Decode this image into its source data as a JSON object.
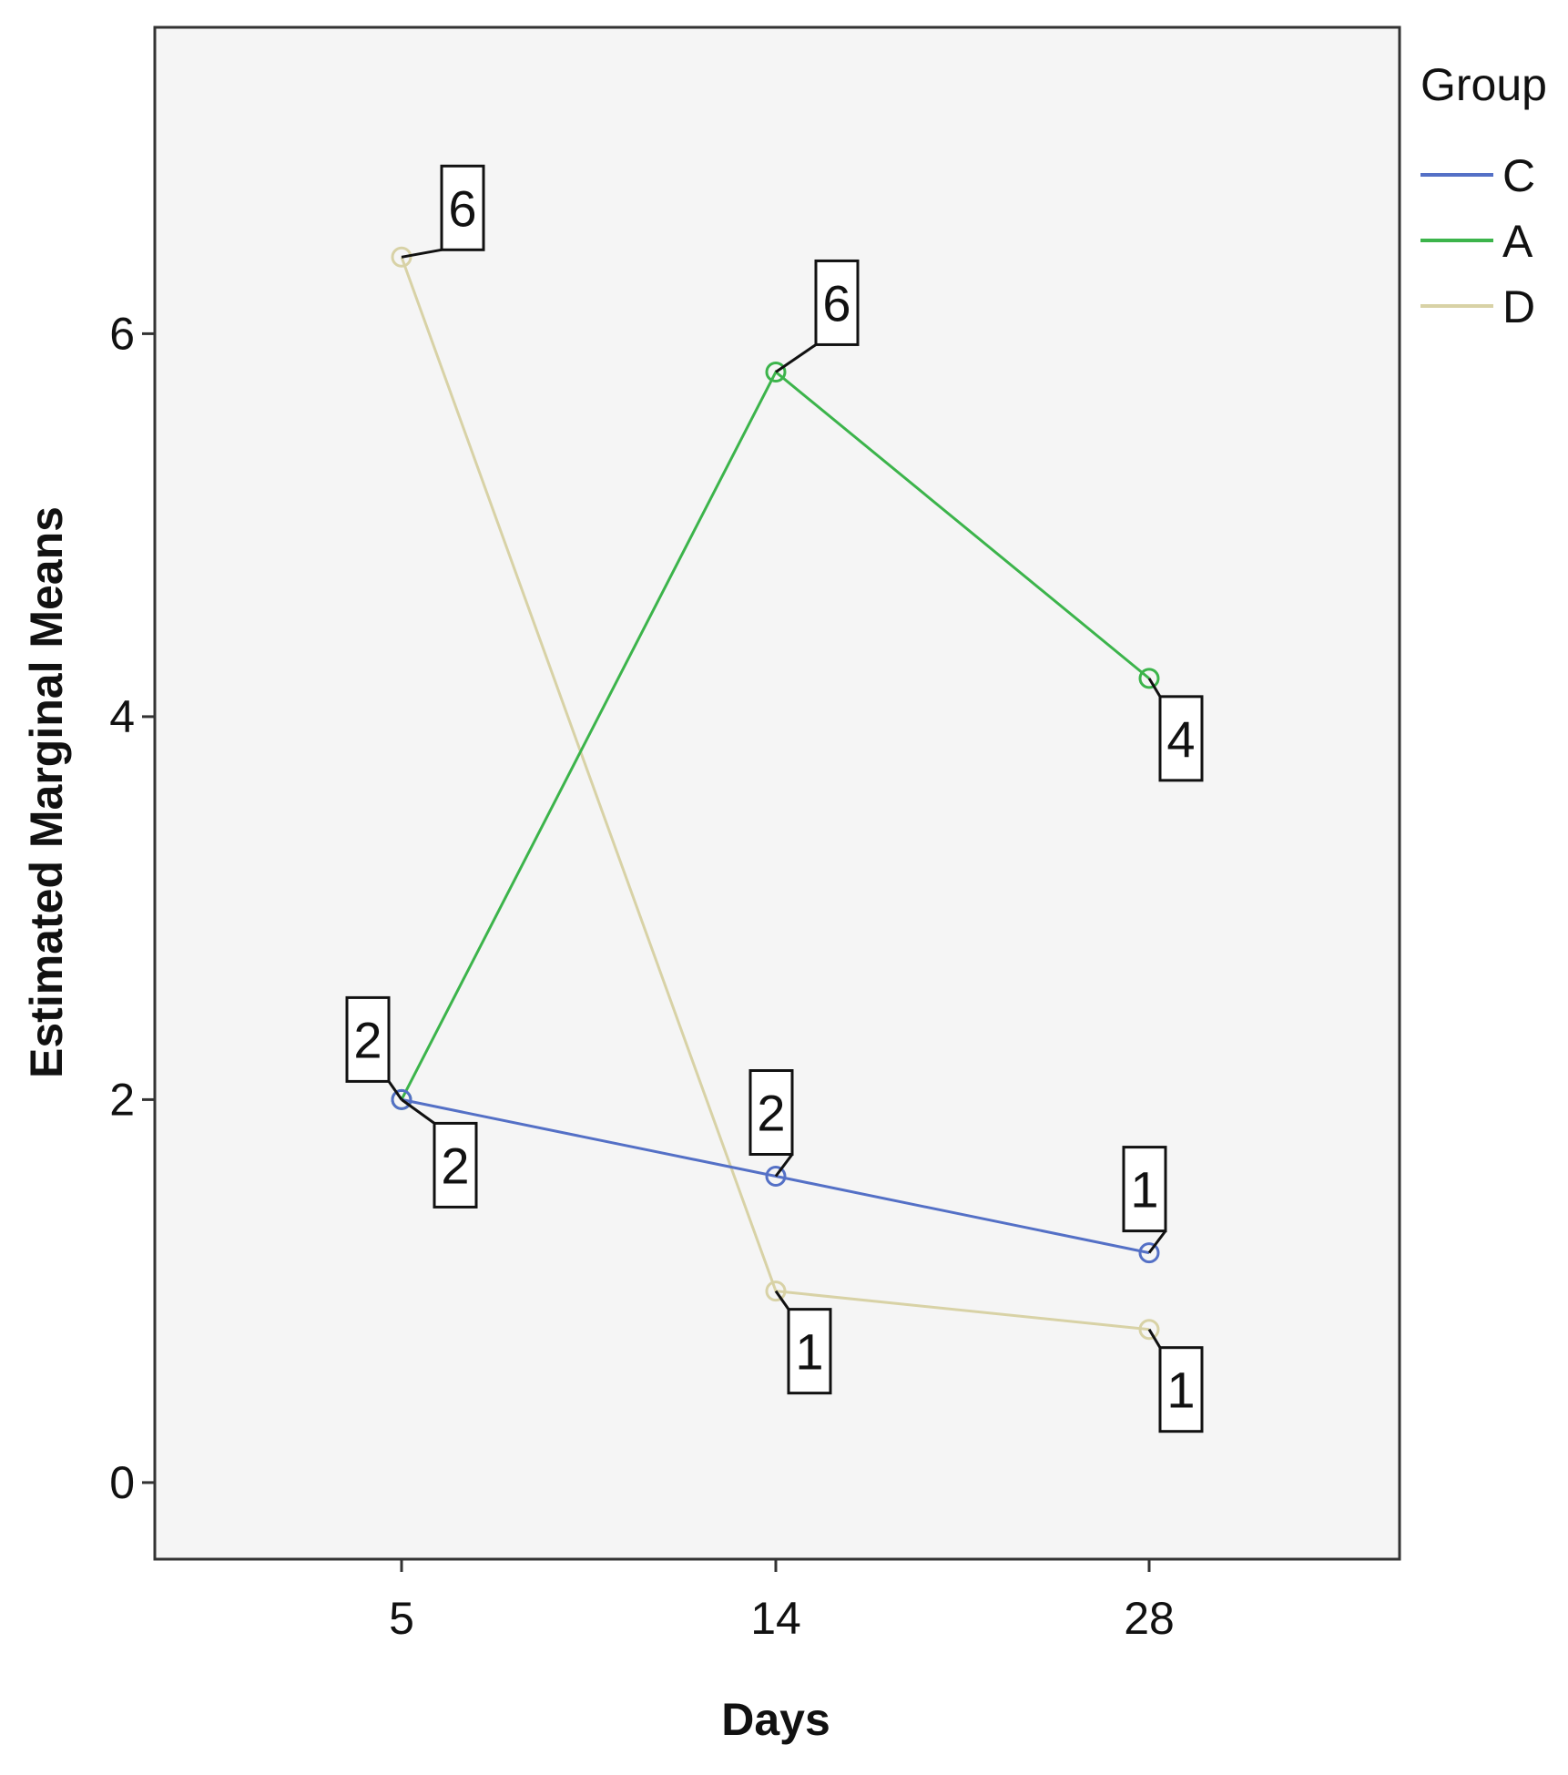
{
  "chart_data": {
    "type": "line",
    "title": "",
    "xlabel": "Days",
    "ylabel": "Estimated Marginal Means",
    "categories": [
      "5",
      "14",
      "28"
    ],
    "ylim": [
      -0.4,
      7.6
    ],
    "yticks": [
      "0",
      "2",
      "4",
      "6"
    ],
    "grid": false,
    "legend": {
      "title": "Group",
      "position": "right"
    },
    "series": [
      {
        "name": "C",
        "color": "#5470c6",
        "values": [
          2.0,
          1.6,
          1.2
        ],
        "labels": [
          "2",
          "2",
          "1"
        ]
      },
      {
        "name": "A",
        "color": "#3cb44b",
        "values": [
          2.0,
          5.8,
          4.2
        ],
        "labels": [
          "2",
          "6",
          "4"
        ]
      },
      {
        "name": "D",
        "color": "#d8d2a6",
        "values": [
          6.4,
          1.0,
          0.8
        ],
        "labels": [
          "6",
          "1",
          "1"
        ]
      }
    ]
  }
}
